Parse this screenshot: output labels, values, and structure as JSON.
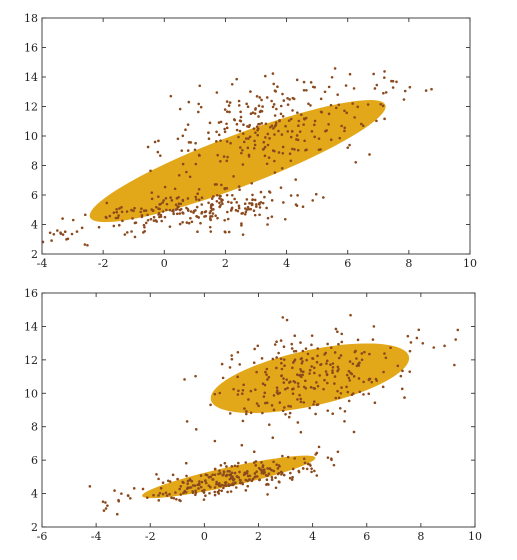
{
  "colors": {
    "ellipse": "#E3A81A",
    "point": "#8B4A1E",
    "axis": "#333333",
    "background": "#ffffff"
  },
  "chart_data": [
    {
      "type": "scatter",
      "title": "",
      "xlabel": "",
      "ylabel": "",
      "xlim": [
        -4,
        10
      ],
      "ylim": [
        2,
        18
      ],
      "xticks": [
        -4,
        -2,
        0,
        2,
        4,
        6,
        8,
        10
      ],
      "yticks": [
        2,
        4,
        6,
        8,
        10,
        12,
        14,
        16,
        18
      ],
      "grid": false,
      "legend": "none",
      "overlay": "single fitted ellipse covering all points",
      "series": [
        {
          "clusters": [
            {
              "center": [
                1.0,
                5.0
              ],
              "sd_x": 1.8,
              "sd_y": 0.7,
              "corr": 0.45,
              "count": 250
            },
            {
              "center": [
                3.5,
                10.8
              ],
              "sd_x": 1.7,
              "sd_y": 1.6,
              "corr": 0.3,
              "count": 260
            },
            {
              "center": [
                -3.3,
                3.2
              ],
              "sd_x": 0.4,
              "sd_y": 0.3,
              "corr": 0.0,
              "count": 12
            },
            {
              "center": [
                7.6,
                13.6
              ],
              "sd_x": 0.6,
              "sd_y": 0.6,
              "corr": 0.0,
              "count": 12
            }
          ]
        }
      ],
      "ellipses": [
        {
          "center": [
            2.4,
            8.3
          ],
          "semi_major": 6.2,
          "semi_minor": 1.45,
          "angle_deg": 40
        }
      ]
    },
    {
      "type": "scatter",
      "title": "",
      "xlabel": "",
      "ylabel": "",
      "xlim": [
        -6,
        10
      ],
      "ylim": [
        2,
        16
      ],
      "xticks": [
        -6,
        -4,
        -2,
        0,
        2,
        4,
        6,
        8,
        10
      ],
      "yticks": [
        2,
        4,
        6,
        8,
        10,
        12,
        14,
        16
      ],
      "grid": false,
      "legend": "none",
      "overlay": "one fitted ellipse per cluster",
      "series": [
        {
          "clusters": [
            {
              "center": [
                1.0,
                4.9
              ],
              "sd_x": 1.6,
              "sd_y": 0.6,
              "corr": 0.7,
              "count": 260
            },
            {
              "center": [
                3.9,
                11.0
              ],
              "sd_x": 1.7,
              "sd_y": 1.5,
              "corr": 0.25,
              "count": 260
            },
            {
              "center": [
                -3.0,
                3.4
              ],
              "sd_x": 0.6,
              "sd_y": 0.5,
              "corr": 0.0,
              "count": 10
            },
            {
              "center": [
                8.5,
                13.2
              ],
              "sd_x": 0.8,
              "sd_y": 0.7,
              "corr": 0.0,
              "count": 8
            }
          ]
        }
      ],
      "ellipses": [
        {
          "center": [
            3.9,
            10.9
          ],
          "semi_major": 3.9,
          "semi_minor": 1.6,
          "angle_deg": 22
        },
        {
          "center": [
            0.9,
            5.0
          ],
          "semi_major": 3.4,
          "semi_minor": 0.55,
          "angle_deg": 20
        }
      ]
    }
  ]
}
